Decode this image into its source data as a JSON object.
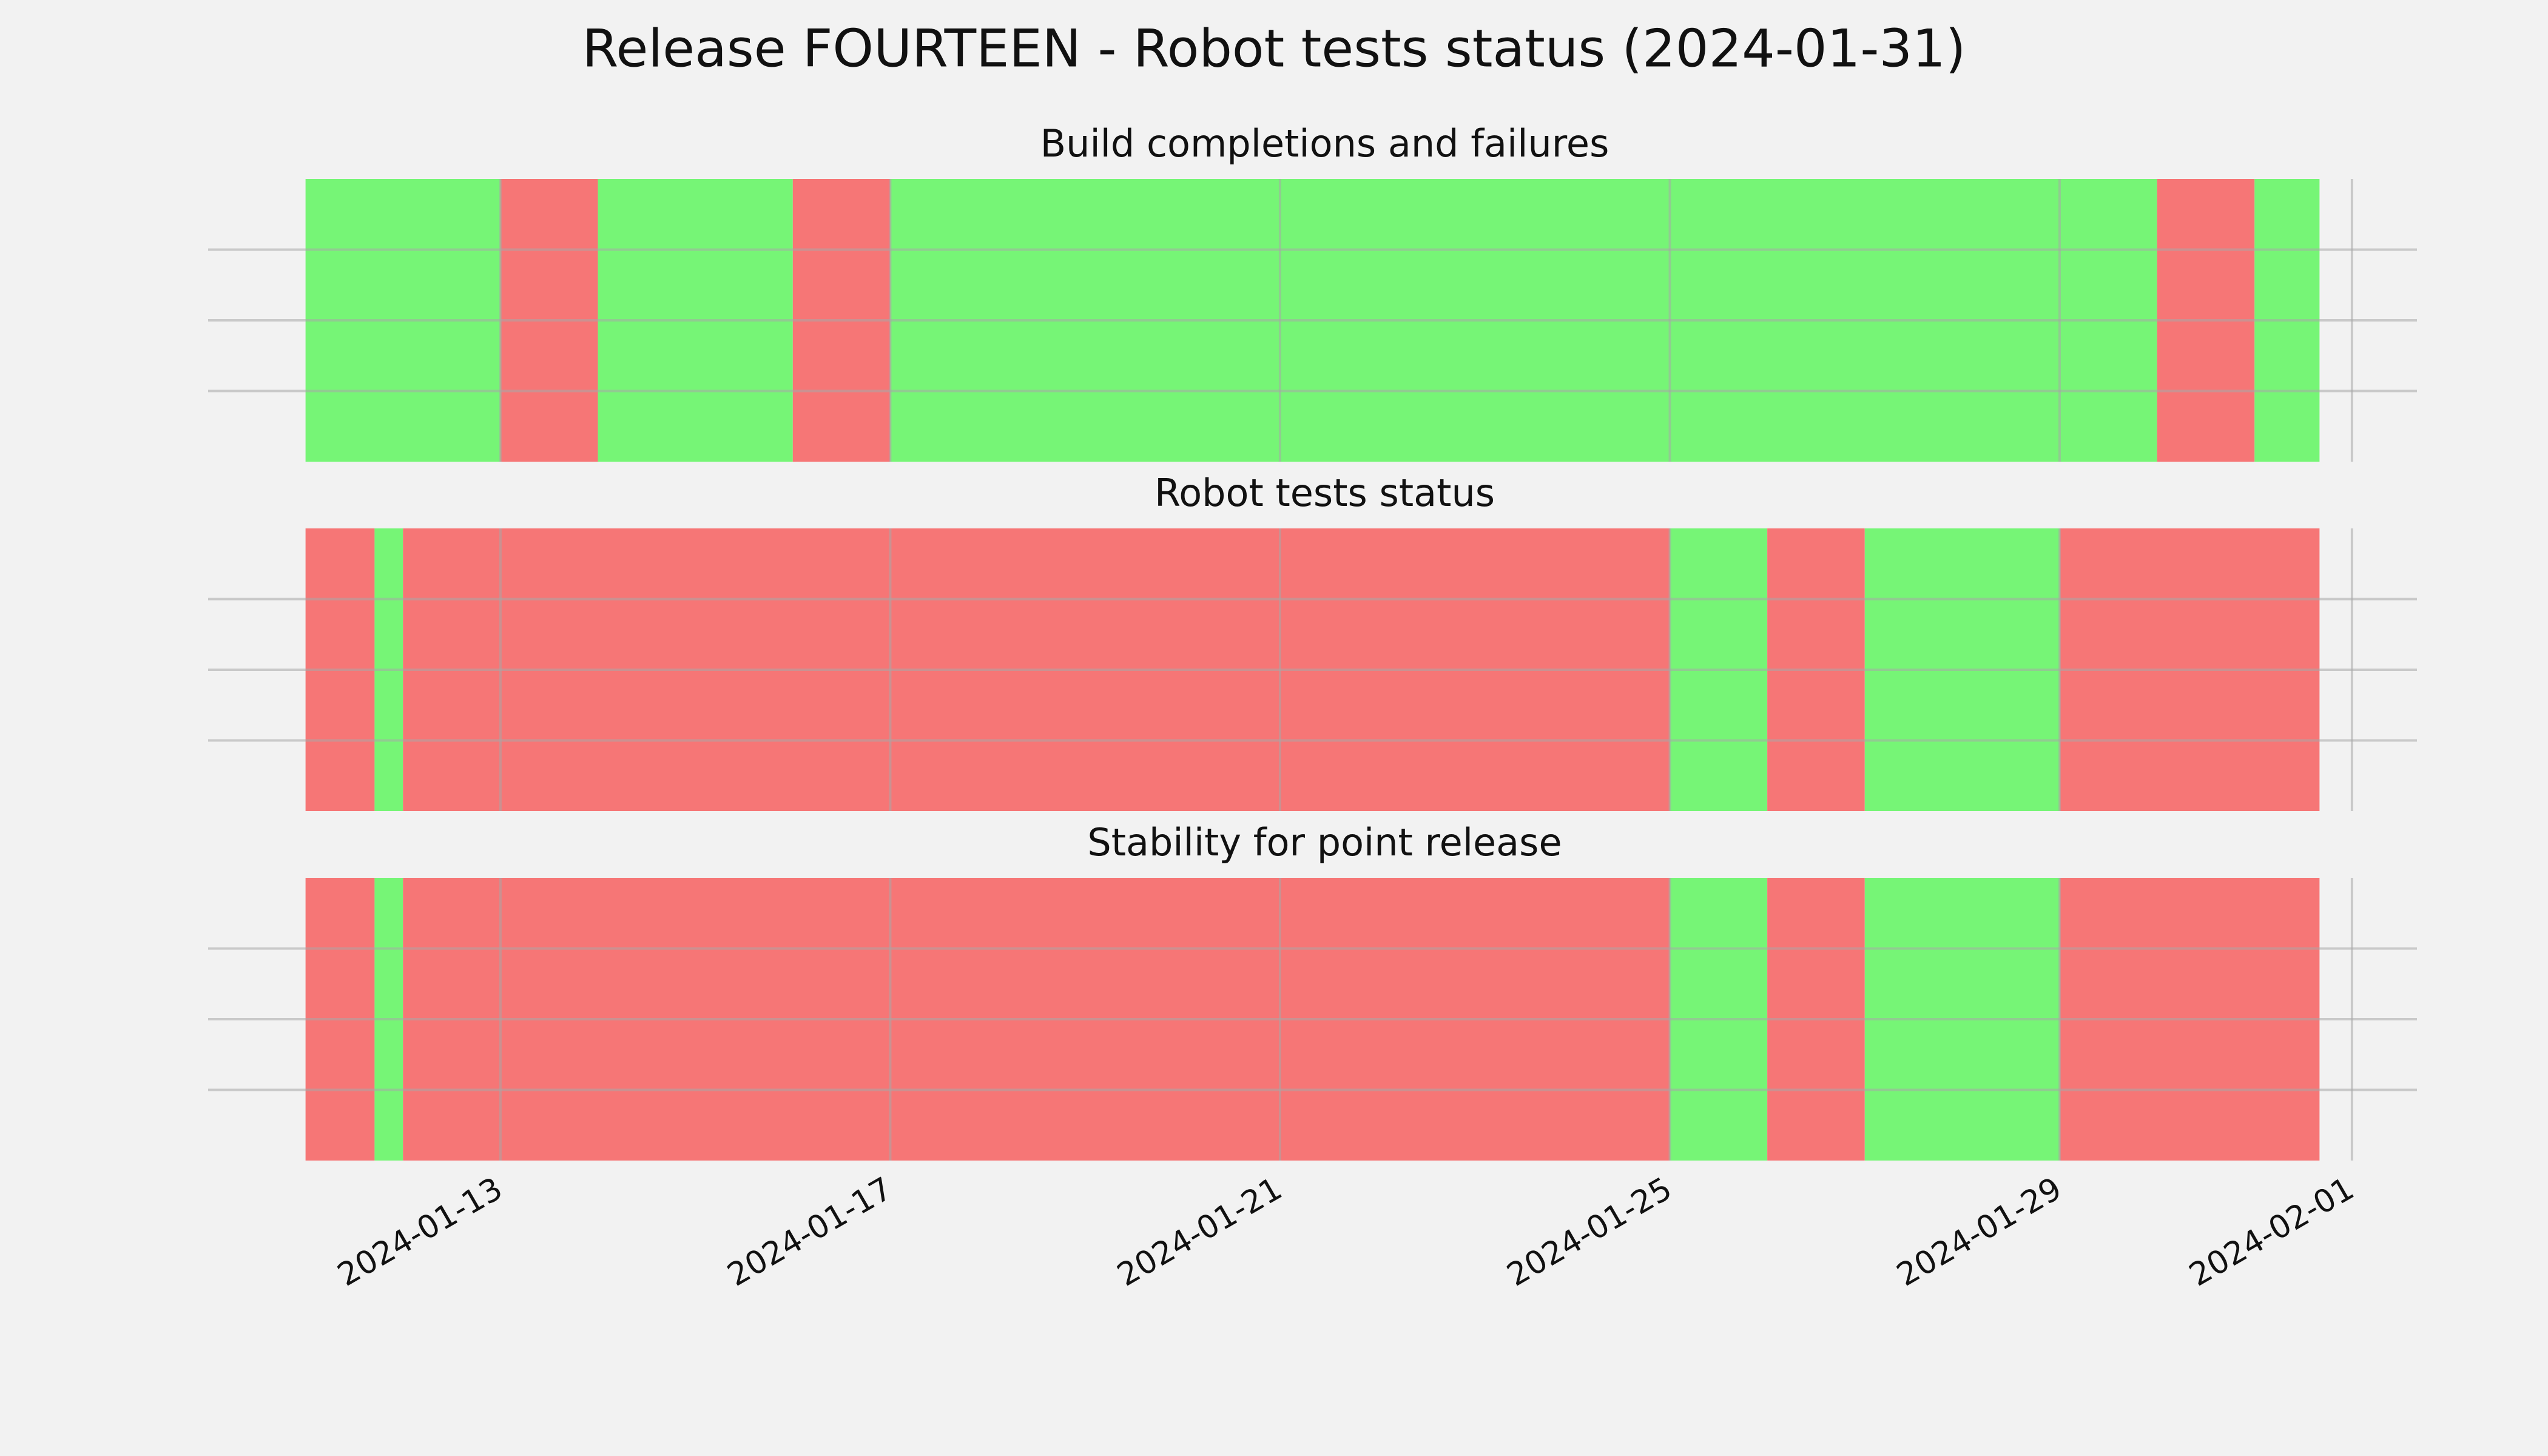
{
  "chart_data": {
    "type": "timeline",
    "title": "Release FOURTEEN - Robot tests status (2024-01-31)",
    "xlim": [
      "2024-01-10T00:00",
      "2024-02-01T16:00"
    ],
    "xticks": [
      "2024-01-13",
      "2024-01-17",
      "2024-01-21",
      "2024-01-25",
      "2024-01-29",
      "2024-02-01"
    ],
    "ylim": [
      0,
      1
    ],
    "yticks": [
      0.25,
      0.5,
      0.75
    ],
    "grid": true,
    "panels": [
      {
        "title": "Build completions and failures",
        "segments": [
          {
            "start": "2024-01-11T00:00",
            "end": "2024-01-13T00:00",
            "color": "#76f576"
          },
          {
            "start": "2024-01-13T00:00",
            "end": "2024-01-14T00:00",
            "color": "#f67676"
          },
          {
            "start": "2024-01-14T00:00",
            "end": "2024-01-16T00:00",
            "color": "#76f576"
          },
          {
            "start": "2024-01-16T00:00",
            "end": "2024-01-17T00:00",
            "color": "#f67676"
          },
          {
            "start": "2024-01-17T00:00",
            "end": "2024-01-30T00:00",
            "color": "#76f576"
          },
          {
            "start": "2024-01-30T00:00",
            "end": "2024-01-31T00:00",
            "color": "#f67676"
          },
          {
            "start": "2024-01-31T00:00",
            "end": "2024-01-31T16:00",
            "color": "#76f576"
          }
        ]
      },
      {
        "title": "Robot tests status",
        "segments": [
          {
            "start": "2024-01-11T00:00",
            "end": "2024-01-11T17:00",
            "color": "#f67676"
          },
          {
            "start": "2024-01-11T17:00",
            "end": "2024-01-12T00:00",
            "color": "#76f576"
          },
          {
            "start": "2024-01-12T00:00",
            "end": "2024-01-25T00:00",
            "color": "#f67676"
          },
          {
            "start": "2024-01-25T00:00",
            "end": "2024-01-26T00:00",
            "color": "#76f576"
          },
          {
            "start": "2024-01-26T00:00",
            "end": "2024-01-27T00:00",
            "color": "#f67676"
          },
          {
            "start": "2024-01-27T00:00",
            "end": "2024-01-29T00:00",
            "color": "#76f576"
          },
          {
            "start": "2024-01-29T00:00",
            "end": "2024-01-31T16:00",
            "color": "#f67676"
          }
        ]
      },
      {
        "title": "Stability for point release",
        "segments": [
          {
            "start": "2024-01-11T00:00",
            "end": "2024-01-11T17:00",
            "color": "#f67676"
          },
          {
            "start": "2024-01-11T17:00",
            "end": "2024-01-12T00:00",
            "color": "#76f576"
          },
          {
            "start": "2024-01-12T00:00",
            "end": "2024-01-25T00:00",
            "color": "#f67676"
          },
          {
            "start": "2024-01-25T00:00",
            "end": "2024-01-26T00:00",
            "color": "#76f576"
          },
          {
            "start": "2024-01-26T00:00",
            "end": "2024-01-27T00:00",
            "color": "#f67676"
          },
          {
            "start": "2024-01-27T00:00",
            "end": "2024-01-29T00:00",
            "color": "#76f576"
          },
          {
            "start": "2024-01-29T00:00",
            "end": "2024-01-31T16:00",
            "color": "#f67676"
          }
        ]
      }
    ]
  }
}
